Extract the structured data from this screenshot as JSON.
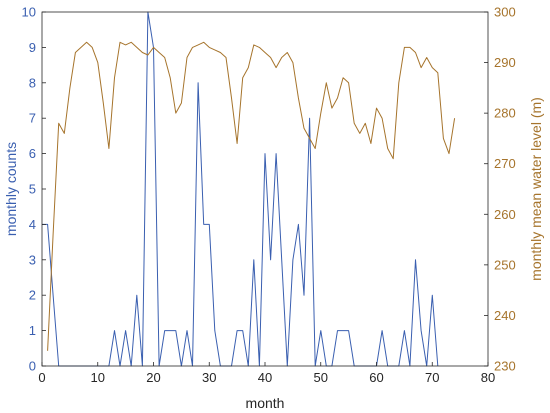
{
  "chart_data": {
    "type": "line",
    "xlabel": "month",
    "ylabel_left": "monthly counts",
    "ylabel_right": "monthly mean water level (m)",
    "xlim": [
      0,
      80
    ],
    "ylim_left": [
      0,
      10
    ],
    "ylim_right": [
      230,
      300
    ],
    "xticks": [
      0,
      10,
      20,
      30,
      40,
      50,
      60,
      70,
      80
    ],
    "yticks_left": [
      0,
      1,
      2,
      3,
      4,
      5,
      6,
      7,
      8,
      9,
      10
    ],
    "yticks_right": [
      230,
      240,
      250,
      260,
      270,
      280,
      290,
      300
    ],
    "grid": false,
    "colors": {
      "left": "#3a5fb0",
      "right": "#a6742c"
    },
    "series": [
      {
        "axis": "left",
        "x": [
          0,
          1,
          2,
          3,
          4,
          5,
          6,
          7,
          8,
          9,
          10,
          11,
          12,
          13,
          14,
          15,
          16,
          17,
          18,
          19,
          20,
          21,
          22,
          23,
          24,
          25,
          26,
          27,
          28,
          29,
          30,
          31,
          32,
          33,
          34,
          35,
          36,
          37,
          38,
          39,
          40,
          41,
          42,
          43,
          44,
          45,
          46,
          47,
          48,
          49,
          50,
          51,
          52,
          53,
          54,
          55,
          56,
          57,
          58,
          59,
          60,
          61,
          62,
          63,
          64,
          65,
          66,
          67,
          68,
          69,
          70,
          71
        ],
        "values": [
          4,
          4,
          2,
          0,
          0,
          0,
          0,
          0,
          0,
          0,
          0,
          0,
          0,
          1,
          0,
          1,
          0,
          2,
          0,
          10,
          9,
          0,
          1,
          1,
          1,
          0,
          1,
          0,
          8,
          4,
          4,
          1,
          0,
          0,
          0,
          1,
          1,
          0,
          3,
          0,
          6,
          3,
          6,
          3,
          0,
          3,
          4,
          2,
          7,
          0,
          1,
          0,
          0,
          1,
          1,
          1,
          0,
          0,
          0,
          0,
          0,
          1,
          0,
          0,
          0,
          1,
          0,
          3,
          1,
          0,
          2,
          0
        ]
      },
      {
        "axis": "right",
        "x": [
          1,
          2,
          3,
          4,
          5,
          6,
          7,
          8,
          9,
          10,
          11,
          12,
          13,
          14,
          15,
          16,
          17,
          18,
          19,
          20,
          21,
          22,
          23,
          24,
          25,
          26,
          27,
          28,
          29,
          30,
          31,
          32,
          33,
          34,
          35,
          36,
          37,
          38,
          39,
          40,
          41,
          42,
          43,
          44,
          45,
          46,
          47,
          48,
          49,
          50,
          51,
          52,
          53,
          54,
          55,
          56,
          57,
          58,
          59,
          60,
          61,
          62,
          63,
          64,
          65,
          66,
          67,
          68,
          69,
          70,
          71,
          72,
          73,
          74
        ],
        "values": [
          233,
          256,
          278,
          276,
          285,
          292,
          293,
          294,
          293,
          290,
          282,
          273,
          287,
          294,
          293.5,
          294,
          293,
          292,
          291.5,
          293,
          292,
          291,
          287,
          280,
          282,
          291,
          293,
          293.5,
          294,
          293,
          292.5,
          292,
          291,
          283,
          274,
          287,
          289,
          293.5,
          293,
          292,
          291,
          289,
          291,
          292,
          290,
          283,
          277,
          275,
          273,
          280,
          286,
          281,
          283,
          287,
          286,
          278,
          276,
          278,
          274,
          281,
          279,
          273,
          271,
          286,
          293,
          293,
          292,
          289,
          291,
          289,
          288,
          275,
          272,
          279
        ]
      }
    ]
  }
}
